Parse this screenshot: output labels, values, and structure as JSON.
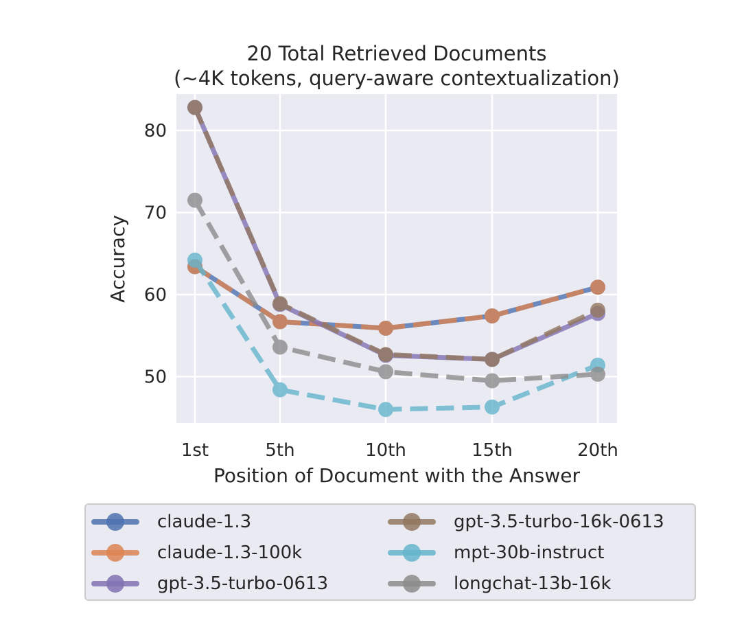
{
  "chart_data": {
    "type": "line",
    "title": "20 Total Retrieved Documents",
    "subtitle": "(~4K tokens, query-aware contextualization)",
    "xlabel": "Position of Document with the Answer",
    "ylabel": "Accuracy",
    "categories": [
      "1st",
      "5th",
      "10th",
      "15th",
      "20th"
    ],
    "x": [
      1,
      5,
      10,
      15,
      20
    ],
    "yticks": [
      50,
      60,
      70,
      80
    ],
    "ylim": [
      44.3,
      84.1
    ],
    "xlim": [
      0.1,
      20.9
    ],
    "grid": true,
    "legend_position": "below, 2 columns",
    "series": [
      {
        "name": "claude-1.3",
        "color": "#4c72b0",
        "style": "solid",
        "values": [
          63.4,
          56.7,
          55.9,
          57.4,
          60.9
        ]
      },
      {
        "name": "claude-1.3-100k",
        "color": "#dd8452",
        "style": "dashed",
        "values": [
          63.4,
          56.7,
          55.9,
          57.4,
          60.9
        ]
      },
      {
        "name": "gpt-3.5-turbo-0613",
        "color": "#8172b3",
        "style": "solid",
        "values": [
          82.8,
          58.8,
          52.6,
          52.1,
          57.7
        ]
      },
      {
        "name": "gpt-3.5-turbo-16k-0613",
        "color": "#937860",
        "style": "dashed",
        "values": [
          82.8,
          58.9,
          52.7,
          52.1,
          58.1
        ]
      },
      {
        "name": "mpt-30b-instruct",
        "color": "#64b5cd",
        "style": "dashed",
        "values": [
          64.2,
          48.4,
          46.0,
          46.3,
          51.4
        ]
      },
      {
        "name": "longchat-13b-16k",
        "color": "#8c8c8c",
        "style": "dashed",
        "values": [
          71.5,
          53.6,
          50.6,
          49.5,
          50.3
        ]
      }
    ]
  },
  "legend": {
    "items": [
      {
        "label": "claude-1.3",
        "color": "#4c72b0"
      },
      {
        "label": "claude-1.3-100k",
        "color": "#dd8452"
      },
      {
        "label": "gpt-3.5-turbo-0613",
        "color": "#8172b3"
      },
      {
        "label": "gpt-3.5-turbo-16k-0613",
        "color": "#937860"
      },
      {
        "label": "mpt-30b-instruct",
        "color": "#64b5cd"
      },
      {
        "label": "longchat-13b-16k",
        "color": "#8c8c8c"
      }
    ]
  },
  "colors": {
    "plot_background": "#eaeaf2",
    "grid": "#ffffff"
  }
}
